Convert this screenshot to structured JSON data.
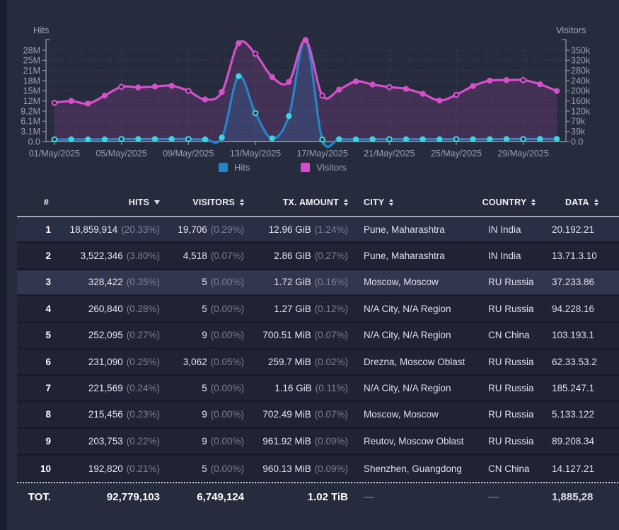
{
  "page": {
    "bg": "#262b3e",
    "left_strip": "#1b1f2d"
  },
  "chart": {
    "type": "line",
    "left_axis": {
      "title": "Hits",
      "max": 30.7,
      "unit": "M",
      "tick_labels": [
        "0.0",
        "3.1M",
        "6.1M",
        "9.2M",
        "12M",
        "15M",
        "18M",
        "21M",
        "25M",
        "28M"
      ]
    },
    "right_axis": {
      "title": "Visitors",
      "max": 393,
      "unit": "k",
      "tick_labels": [
        "0.0",
        "39k",
        "79k",
        "120k",
        "160k",
        "200k",
        "240k",
        "280k",
        "320k",
        "350k"
      ]
    },
    "dates": [
      "01/May/2025",
      "02/May/2025",
      "03/May/2025",
      "04/May/2025",
      "05/May/2025",
      "06/May/2025",
      "07/May/2025",
      "08/May/2025",
      "09/May/2025",
      "10/May/2025",
      "11/May/2025",
      "12/May/2025",
      "13/May/2025",
      "14/May/2025",
      "15/May/2025",
      "16/May/2025",
      "17/May/2025",
      "18/May/2025",
      "19/May/2025",
      "20/May/2025",
      "21/May/2025",
      "22/May/2025",
      "23/May/2025",
      "24/May/2025",
      "25/May/2025",
      "26/May/2025",
      "27/May/2025",
      "28/May/2025",
      "29/May/2025",
      "30/May/2025",
      "31/May/2025"
    ],
    "x_tick_every": 4,
    "series": [
      {
        "name": "Hits",
        "axis": "left",
        "color": "#2286c8",
        "marker_color": "#3bd2e2",
        "fill": "rgba(34,134,200,0.20)",
        "values": [
          0.65,
          0.65,
          0.65,
          0.65,
          0.75,
          0.75,
          0.75,
          0.78,
          0.75,
          0.65,
          1.2,
          19.8,
          8.6,
          0.95,
          7.7,
          30.7,
          0.6,
          0.72,
          0.65,
          0.7,
          0.7,
          0.7,
          0.7,
          0.68,
          0.7,
          0.7,
          0.72,
          0.75,
          0.75,
          0.78,
          0.8
        ]
      },
      {
        "name": "Visitors",
        "axis": "right",
        "color": "#d650c9",
        "marker_color": "#d650c9",
        "fill": "rgba(212,80,200,0.17)",
        "values": [
          150,
          157,
          147,
          178,
          212,
          210,
          213,
          216,
          196,
          163,
          192,
          381,
          340,
          250,
          231,
          393,
          178,
          201,
          233,
          221,
          211,
          204,
          185,
          159,
          181,
          215,
          236,
          238,
          238,
          222,
          196
        ]
      }
    ],
    "legend": [
      {
        "label": "Hits",
        "color": "#2286c8"
      },
      {
        "label": "Visitors",
        "color": "#d14fc6"
      }
    ]
  },
  "table": {
    "columns": [
      {
        "key": "rank",
        "label": "#",
        "sort": "none"
      },
      {
        "key": "hits",
        "label": "HITS",
        "sort": "desc"
      },
      {
        "key": "visitors",
        "label": "VISITORS",
        "sort": "both"
      },
      {
        "key": "tx",
        "label": "TX. AMOUNT",
        "sort": "both"
      },
      {
        "key": "city",
        "label": "CITY",
        "sort": "both"
      },
      {
        "key": "country",
        "label": "COUNTRY",
        "sort": "both"
      },
      {
        "key": "data",
        "label": "DATA",
        "sort": "both"
      }
    ],
    "rows": [
      {
        "rank": "1",
        "hits": "18,859,914",
        "hits_pct": "(20.33%)",
        "visitors": "19,706",
        "visitors_pct": "(0.29%)",
        "tx": "12.96 GiB",
        "tx_pct": "(1.24%)",
        "city": "Pune, Maharashtra",
        "country": "IN India",
        "data": "20.192.21",
        "variant": "light"
      },
      {
        "rank": "2",
        "hits": "3,522,346",
        "hits_pct": "(3.80%)",
        "visitors": "4,518",
        "visitors_pct": "(0.07%)",
        "tx": "2.86 GiB",
        "tx_pct": "(0.27%)",
        "city": "Pune, Maharashtra",
        "country": "IN India",
        "data": "13.71.3.10",
        "variant": "dark"
      },
      {
        "rank": "3",
        "hits": "328,422",
        "hits_pct": "(0.35%)",
        "visitors": "5",
        "visitors_pct": "(0.00%)",
        "tx": "1.72 GiB",
        "tx_pct": "(0.16%)",
        "city": "Moscow, Moscow",
        "country": "RU Russia",
        "data": "37.233.86",
        "variant": "hover"
      },
      {
        "rank": "4",
        "hits": "260,840",
        "hits_pct": "(0.28%)",
        "visitors": "5",
        "visitors_pct": "(0.00%)",
        "tx": "1.27 GiB",
        "tx_pct": "(0.12%)",
        "city": "N/A City, N/A Region",
        "country": "RU Russia",
        "data": "94.228.16",
        "variant": "dark"
      },
      {
        "rank": "5",
        "hits": "252,095",
        "hits_pct": "(0.27%)",
        "visitors": "9",
        "visitors_pct": "(0.00%)",
        "tx": "700.51 MiB",
        "tx_pct": "(0.07%)",
        "city": "N/A City, N/A Region",
        "country": "CN China",
        "data": "103.193.1",
        "variant": "dark"
      },
      {
        "rank": "6",
        "hits": "231,090",
        "hits_pct": "(0.25%)",
        "visitors": "3,062",
        "visitors_pct": "(0.05%)",
        "tx": "259.7 MiB",
        "tx_pct": "(0.02%)",
        "city": "Drezna, Moscow Oblast",
        "country": "RU Russia",
        "data": "62.33.53.2",
        "variant": "dark"
      },
      {
        "rank": "7",
        "hits": "221,569",
        "hits_pct": "(0.24%)",
        "visitors": "5",
        "visitors_pct": "(0.00%)",
        "tx": "1.16 GiB",
        "tx_pct": "(0.11%)",
        "city": "N/A City, N/A Region",
        "country": "RU Russia",
        "data": "185.247.1",
        "variant": "dark"
      },
      {
        "rank": "8",
        "hits": "215,456",
        "hits_pct": "(0.23%)",
        "visitors": "9",
        "visitors_pct": "(0.00%)",
        "tx": "702.49 MiB",
        "tx_pct": "(0.07%)",
        "city": "Moscow, Moscow",
        "country": "RU Russia",
        "data": "5.133.122",
        "variant": "dark"
      },
      {
        "rank": "9",
        "hits": "203,753",
        "hits_pct": "(0.22%)",
        "visitors": "9",
        "visitors_pct": "(0.00%)",
        "tx": "961.92 MiB",
        "tx_pct": "(0.09%)",
        "city": "Reutov, Moscow Oblast",
        "country": "RU Russia",
        "data": "89.208.34",
        "variant": "dark"
      },
      {
        "rank": "10",
        "hits": "192,820",
        "hits_pct": "(0.21%)",
        "visitors": "5",
        "visitors_pct": "(0.00%)",
        "tx": "960.13 MiB",
        "tx_pct": "(0.09%)",
        "city": "Shenzhen, Guangdong",
        "country": "CN China",
        "data": "14.127.21",
        "variant": "dark"
      }
    ],
    "totals": {
      "label": "TOT.",
      "hits": "92,779,103",
      "visitors": "6,749,124",
      "tx": "1.02 TiB",
      "city": "—",
      "country": "—",
      "data": "1,885,28"
    }
  }
}
